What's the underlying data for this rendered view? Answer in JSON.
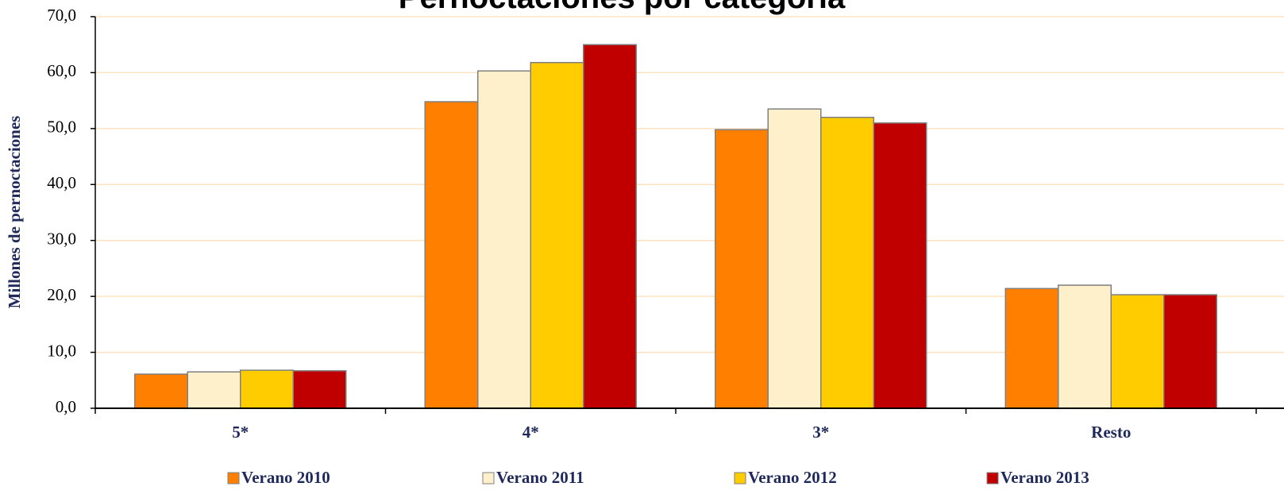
{
  "chart_data": {
    "type": "bar",
    "title": "Pernoctaciones por categoría",
    "y_label": "Millones de pernoctaciones",
    "categories": [
      "5*",
      "4*",
      "3*",
      "Resto"
    ],
    "series": [
      {
        "name": "Verano 2010",
        "color": "#ff8000",
        "values": [
          6.1,
          54.8,
          49.8,
          21.4
        ]
      },
      {
        "name": "Verano 2011",
        "color": "#fff0cc",
        "values": [
          6.5,
          60.3,
          53.5,
          22.0
        ]
      },
      {
        "name": "Verano 2012",
        "color": "#ffcc00",
        "values": [
          6.8,
          61.8,
          52.0,
          20.3
        ]
      },
      {
        "name": "Verano 2013",
        "color": "#c00000",
        "values": [
          6.7,
          65.0,
          51.0,
          20.3
        ]
      }
    ],
    "ylim": [
      0,
      70
    ],
    "yticks": [
      {
        "value": 0,
        "label": "0,0"
      },
      {
        "value": 10,
        "label": "10,0"
      },
      {
        "value": 20,
        "label": "20,0"
      },
      {
        "value": 30,
        "label": "30,0"
      },
      {
        "value": 40,
        "label": "40,0"
      },
      {
        "value": 50,
        "label": "50,0"
      },
      {
        "value": 60,
        "label": "60,0"
      },
      {
        "value": 70,
        "label": "70,0"
      }
    ],
    "grid": true,
    "legend": "bottom"
  }
}
